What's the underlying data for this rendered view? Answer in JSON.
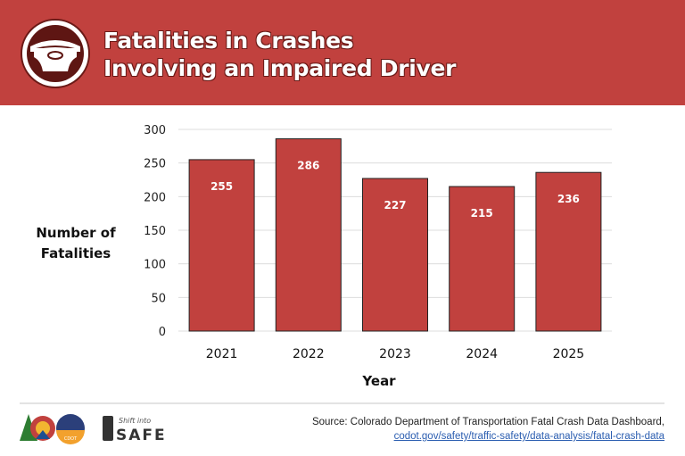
{
  "header": {
    "title_line1": "Fatalities in Crashes",
    "title_line2": "Involving an Impaired Driver",
    "icon": "steering-wheel-icon",
    "background_color": "#c1413e"
  },
  "chart_data": {
    "type": "bar",
    "categories": [
      "2021",
      "2022",
      "2023",
      "2024",
      "2025"
    ],
    "values": [
      255,
      286,
      227,
      215,
      236
    ],
    "data_labels": [
      "255",
      "286",
      "227",
      "215",
      "236"
    ],
    "xlabel": "Year",
    "ylabel_line1": "Number of",
    "ylabel_line2": "Fatalities",
    "ylim": [
      0,
      300
    ],
    "yticks": [
      0,
      50,
      100,
      150,
      200,
      250,
      300
    ],
    "grid": true,
    "bar_color": "#c1413e"
  },
  "footer": {
    "source_text": "Source: Colorado Department of Transportation Fatal Crash Data Dashboard,",
    "source_link": "codot.gov/safety/traffic-safety/data-analysis/fatal-crash-data",
    "logo1_text": "CDOT",
    "logo2_text_small": "Shift into",
    "logo2_text_big": "SAFE"
  }
}
